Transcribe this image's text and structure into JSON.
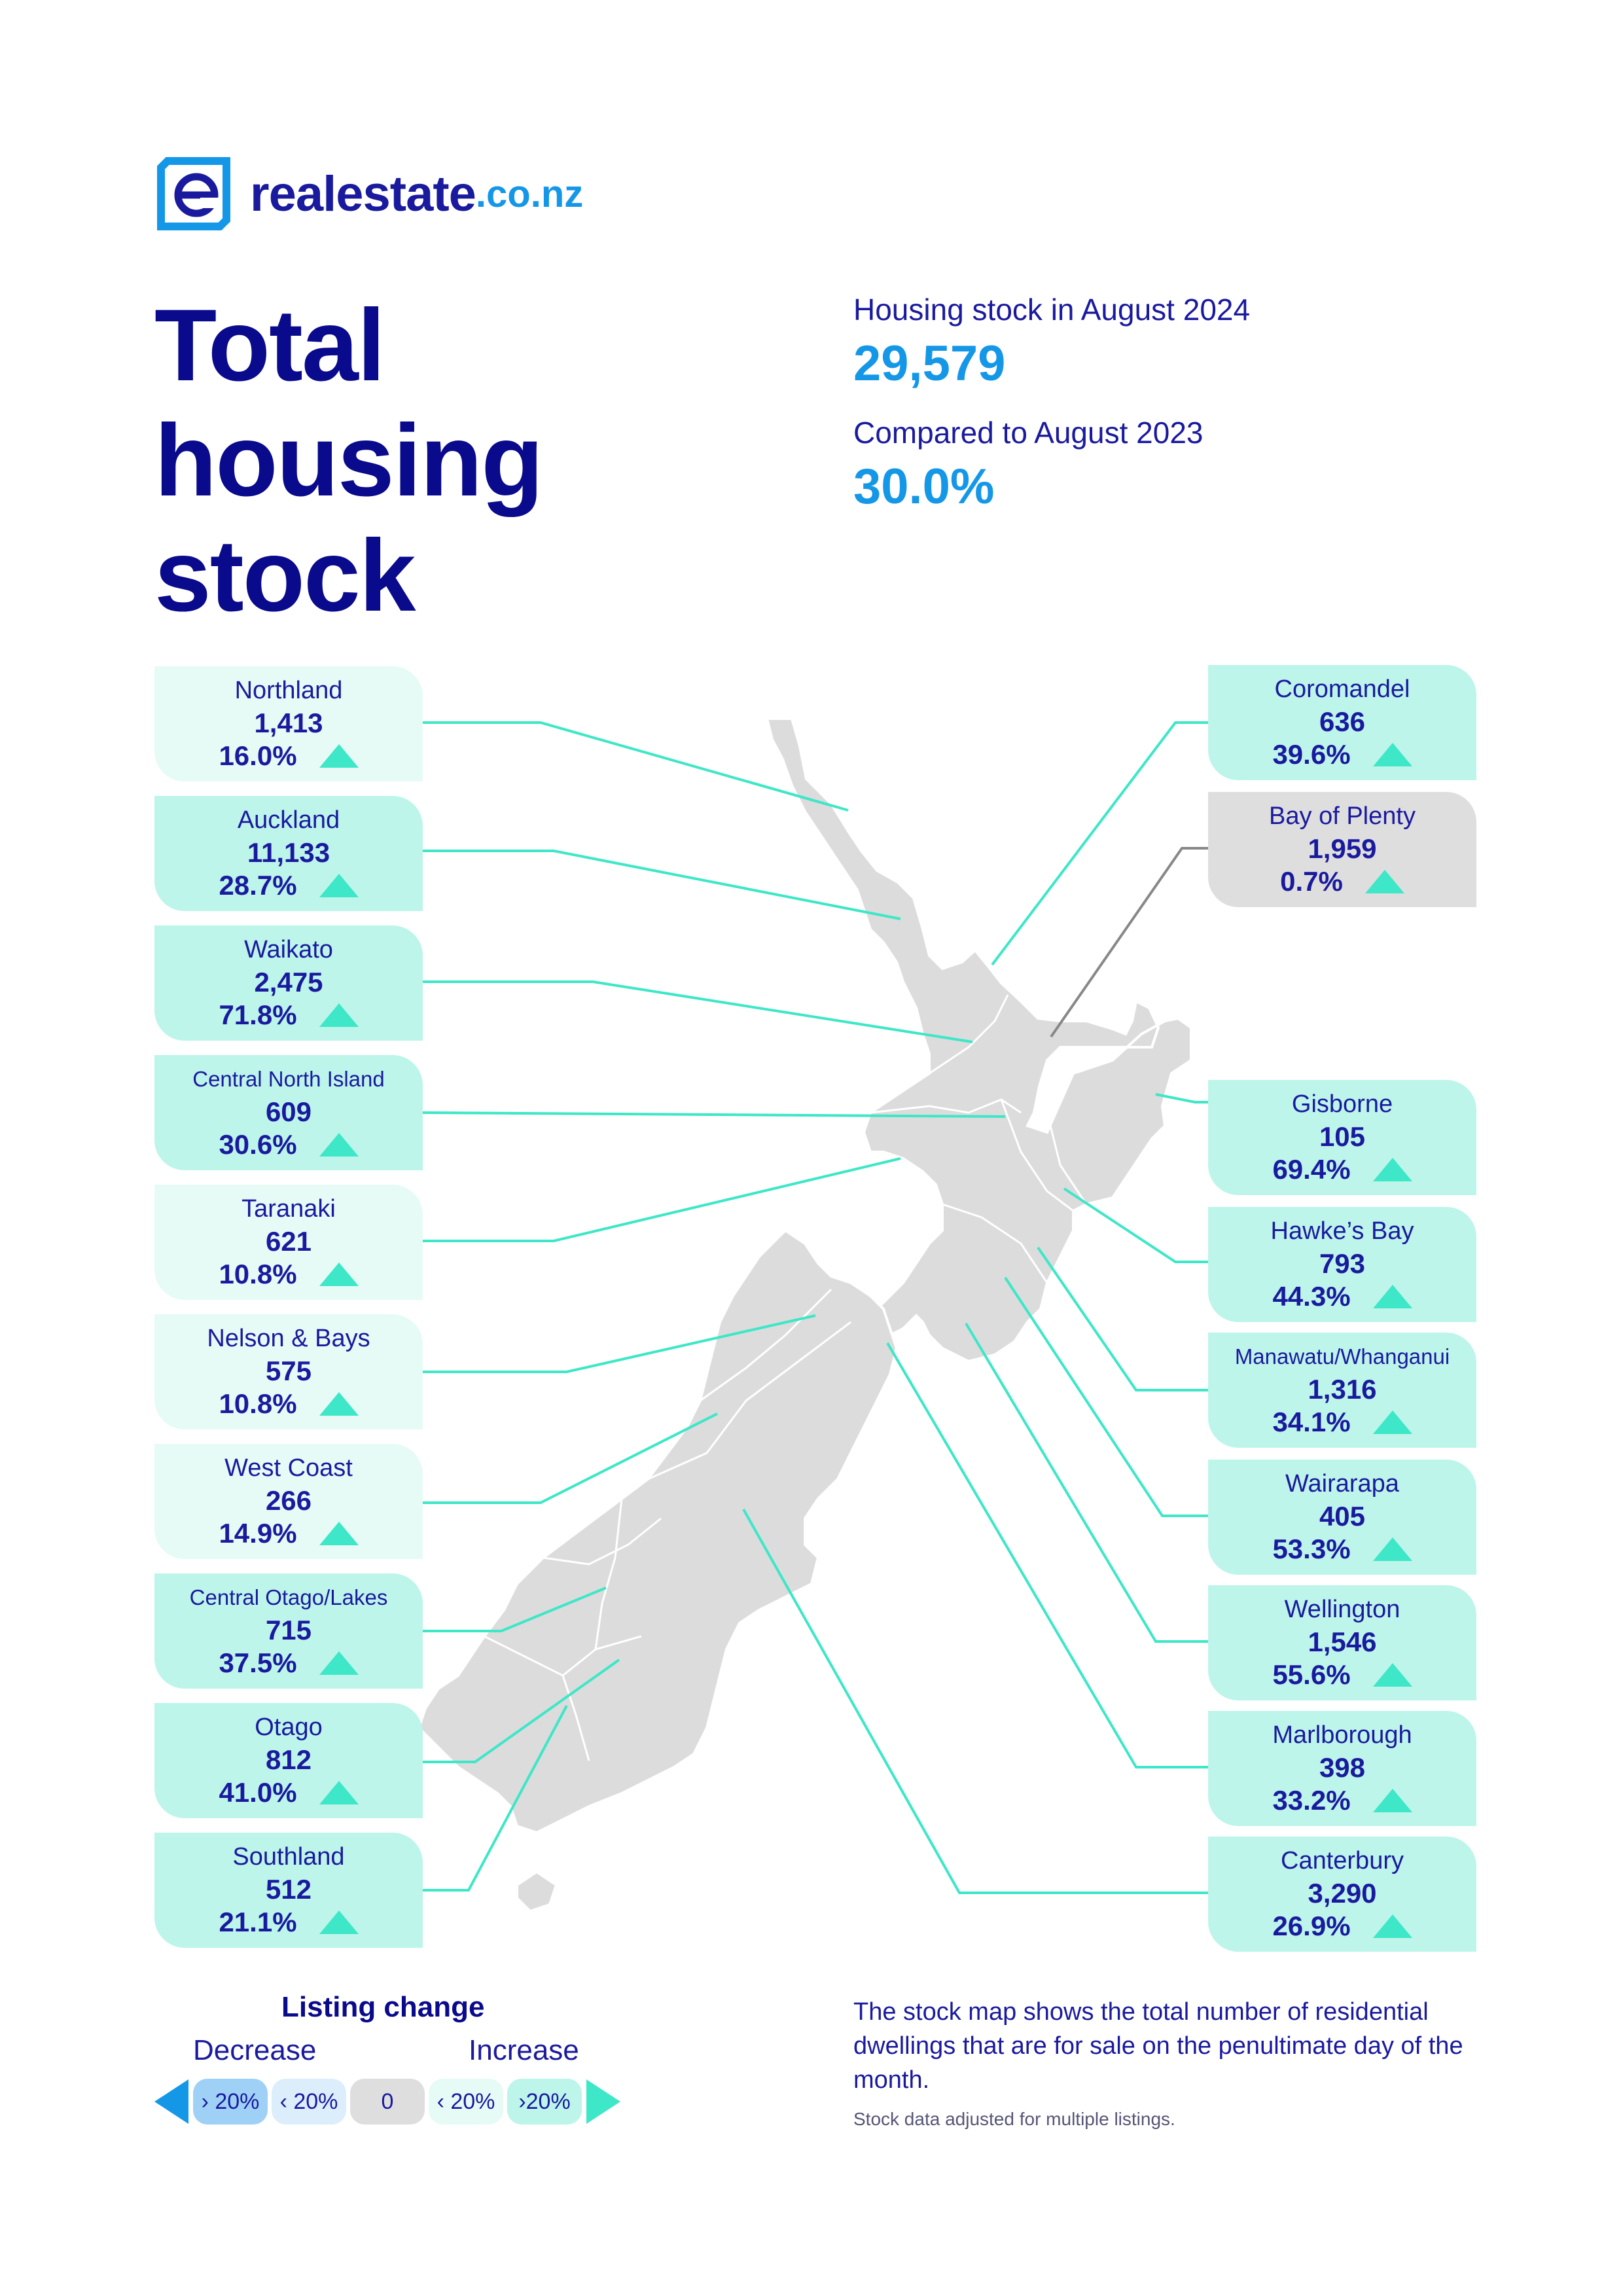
{
  "brand": {
    "name": "realestate",
    "tld": ".co.nz",
    "mark": "e"
  },
  "title_lines": [
    "Total",
    "housing",
    "stock"
  ],
  "summary": {
    "stock_label": "Housing stock in August 2024",
    "stock_value": "29,579",
    "compare_label": "Compared to August 2023",
    "compare_value": "30.0%"
  },
  "colors": {
    "dark_blue": "#0a0a8c",
    "accent_blue": "#1597e8",
    "teal": "#3de7c7",
    "land": "#dcdcdc",
    "increase_small": "#e6fbf6",
    "increase_big": "#bdf5ea",
    "no_change": "#dedede"
  },
  "regions": [
    {
      "name": "Northland",
      "count": "1,413",
      "change": "16.0%",
      "change_value": 16.0
    },
    {
      "name": "Auckland",
      "count": "11,133",
      "change": "28.7%",
      "change_value": 28.7
    },
    {
      "name": "Waikato",
      "count": "2,475",
      "change": "71.8%",
      "change_value": 71.8
    },
    {
      "name": "Central North Island",
      "count": "609",
      "change": "30.6%",
      "change_value": 30.6
    },
    {
      "name": "Taranaki",
      "count": "621",
      "change": "10.8%",
      "change_value": 10.8
    },
    {
      "name": "Nelson & Bays",
      "count": "575",
      "change": "10.8%",
      "change_value": 10.8
    },
    {
      "name": "West Coast",
      "count": "266",
      "change": "14.9%",
      "change_value": 14.9
    },
    {
      "name": "Central Otago/Lakes",
      "count": "715",
      "change": "37.5%",
      "change_value": 37.5
    },
    {
      "name": "Otago",
      "count": "812",
      "change": "41.0%",
      "change_value": 41.0
    },
    {
      "name": "Southland",
      "count": "512",
      "change": "21.1%",
      "change_value": 21.1
    },
    {
      "name": "Coromandel",
      "count": "636",
      "change": "39.6%",
      "change_value": 39.6
    },
    {
      "name": "Bay of Plenty",
      "count": "1,959",
      "change": "0.7%",
      "change_value": 0.7
    },
    {
      "name": "Gisborne",
      "count": "105",
      "change": "69.4%",
      "change_value": 69.4
    },
    {
      "name": "Hawke’s Bay",
      "count": "793",
      "change": "44.3%",
      "change_value": 44.3
    },
    {
      "name": "Manawatu/Whanganui",
      "count": "1,316",
      "change": "34.1%",
      "change_value": 34.1
    },
    {
      "name": "Wairarapa",
      "count": "405",
      "change": "53.3%",
      "change_value": 53.3
    },
    {
      "name": "Wellington",
      "count": "1,546",
      "change": "55.6%",
      "change_value": 55.6
    },
    {
      "name": "Marlborough",
      "count": "398",
      "change": "33.2%",
      "change_value": 33.2
    },
    {
      "name": "Canterbury",
      "count": "3,290",
      "change": "26.9%",
      "change_value": 26.9
    }
  ],
  "legend": {
    "title": "Listing change",
    "decrease_label": "Decrease",
    "increase_label": "Increase",
    "chips": [
      {
        "label": "› 20%",
        "color": "#9fd1f7"
      },
      {
        "label": "‹ 20%",
        "color": "#dcedfb"
      },
      {
        "label": "0",
        "color": "#dedede"
      },
      {
        "label": "‹ 20%",
        "color": "#e6fbf6"
      },
      {
        "label": "›20%",
        "color": "#bdf5ea"
      }
    ]
  },
  "note": "The stock map shows the total number of residential dwellings that are for sale on the penultimate day of the month.",
  "note_small": "Stock data adjusted for multiple listings."
}
